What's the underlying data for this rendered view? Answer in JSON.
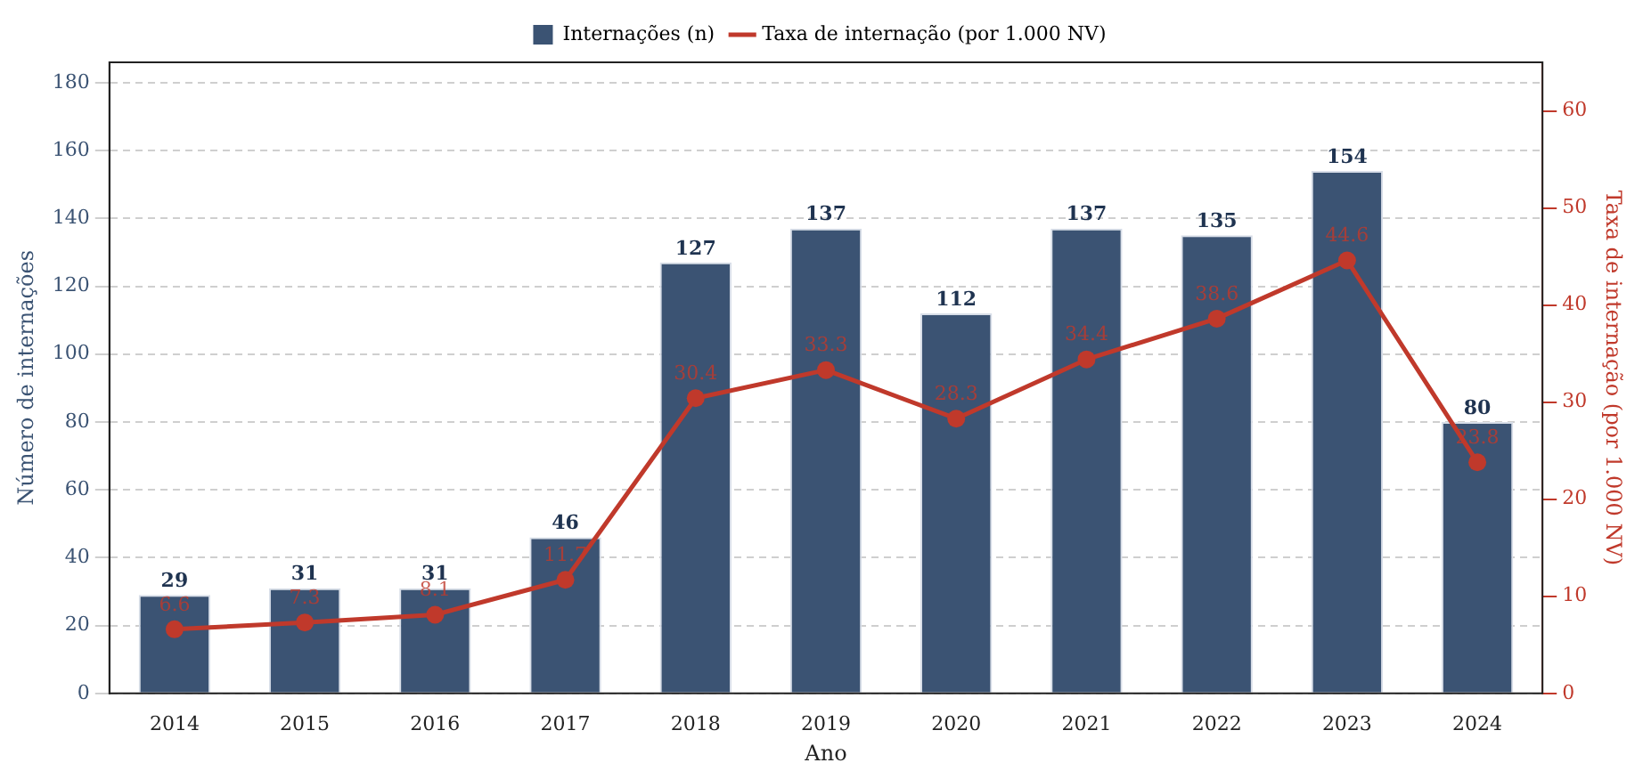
{
  "chart_data": {
    "type": "bar",
    "xlabel": "Ano",
    "ylabel": "Número de internações",
    "y2label": "Taxa de internação (por 1.000 NV)",
    "categories": [
      "2014",
      "2015",
      "2016",
      "2017",
      "2018",
      "2019",
      "2020",
      "2021",
      "2022",
      "2023",
      "2024"
    ],
    "series": [
      {
        "name": "Internações (n)",
        "color": "#3b5373",
        "values": [
          29,
          31,
          31,
          46,
          127,
          137,
          112,
          137,
          135,
          154,
          80
        ]
      },
      {
        "name": "Taxa de internação (por 1.000 NV)",
        "type": "line",
        "axis": "y2",
        "color": "#c0392b",
        "values": [
          6.6,
          7.3,
          8.1,
          11.7,
          30.4,
          33.3,
          28.3,
          34.4,
          38.6,
          44.6,
          23.8
        ]
      }
    ],
    "ylim": [
      0,
      186
    ],
    "yticks": [
      0,
      20,
      40,
      60,
      80,
      100,
      120,
      140,
      160,
      180
    ],
    "y2lim": [
      0,
      65
    ],
    "y2ticks": [
      0,
      10,
      20,
      30,
      40,
      50,
      60
    ],
    "grid": "y",
    "legend": "top",
    "marker": "circle",
    "line_style": "solid",
    "data_labels": true
  }
}
